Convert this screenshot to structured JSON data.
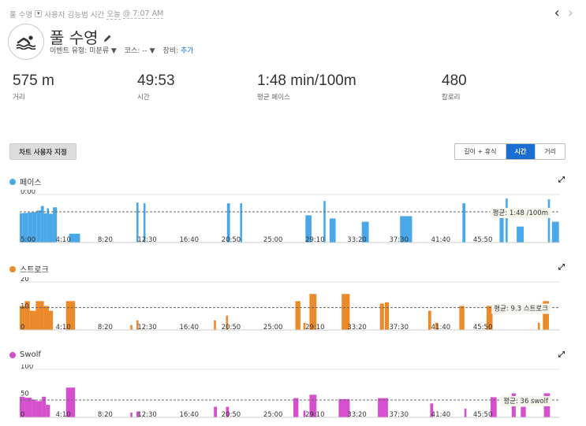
{
  "breadcrumb": {
    "a": "풀 수영",
    "b": "사용자 김능범 시간",
    "c": "오늘",
    "d": "@ 7:07 AM"
  },
  "title": "풀 수영",
  "meta": {
    "event_label": "이벤트 유형:",
    "event_value": "미분류 ▼",
    "course_label": "코스:",
    "course_value": "-- ▼",
    "gear_label": "장비:",
    "gear_value": "추가"
  },
  "stats": [
    {
      "value": "575 m",
      "label": "거리"
    },
    {
      "value": "49:53",
      "label": "시간"
    },
    {
      "value": "1:48 min/100m",
      "label": "평균 페이스"
    },
    {
      "value": "480",
      "label": "칼로리"
    }
  ],
  "customize_label": "차트 사용자 지정",
  "toggle": [
    "길이 + 휴식",
    "시간",
    "거리"
  ],
  "toggle_active": "시간",
  "colors": {
    "pace": "#4aa8e8",
    "stroke": "#ea8a2a",
    "swolf": "#d54fcf",
    "toggle_active": "#1a6ed0"
  },
  "x_ticks": [
    "4:10",
    "8:20",
    "12:30",
    "16:40",
    "20:50",
    "25:00",
    "29:10",
    "33:20",
    "37:30",
    "41:40",
    "45:50"
  ],
  "charts": [
    {
      "title": "페이스",
      "color": "#4aa8e8",
      "y_ticks": [
        "0:00",
        "5:00"
      ],
      "avg_label": "평균: 1:48 /100m",
      "y_min": 0,
      "y_max": 300,
      "inverted": true,
      "avg": 108,
      "chart_data": {
        "type": "bar",
        "series": [
          [
            0,
            0.3,
            117
          ],
          [
            0.3,
            0.8,
            115
          ],
          [
            0.8,
            1.3,
            112
          ],
          [
            1.3,
            1.7,
            110
          ],
          [
            1.7,
            2.1,
            100
          ],
          [
            2.1,
            2.4,
            72
          ],
          [
            2.4,
            2.7,
            118
          ],
          [
            2.7,
            2.9,
            86
          ],
          [
            2.9,
            3.3,
            120
          ],
          [
            3.3,
            3.7,
            80
          ],
          [
            4.9,
            6.0,
            245
          ],
          [
            11.6,
            11.8,
            50
          ],
          [
            12.3,
            12.5,
            55
          ],
          [
            20.6,
            20.9,
            55
          ],
          [
            21.9,
            22.1,
            55
          ],
          [
            28.4,
            29.0,
            130
          ],
          [
            30.2,
            30.4,
            40
          ],
          [
            30.8,
            31.4,
            150
          ],
          [
            34.0,
            34.7,
            170
          ],
          [
            37.8,
            39.0,
            135
          ],
          [
            44.0,
            44.3,
            55
          ],
          [
            47.7,
            48.1,
            115
          ],
          [
            48.3,
            48.5,
            25
          ],
          [
            49.4,
            50.1,
            200
          ],
          [
            52.5,
            52.7,
            30
          ],
          [
            52.9,
            53.6,
            170
          ]
        ]
      }
    },
    {
      "title": "스트로크",
      "color": "#ea8a2a",
      "y_ticks": [
        "20",
        "10",
        "0"
      ],
      "avg_label": "평균: 9.3 스트로크",
      "y_min": 0,
      "y_max": 20,
      "inverted": false,
      "avg": 9.3,
      "chart_data": {
        "type": "bar",
        "series": [
          [
            0,
            0.5,
            10
          ],
          [
            0.5,
            1.0,
            12
          ],
          [
            1.0,
            1.6,
            8
          ],
          [
            1.6,
            2.4,
            12
          ],
          [
            2.4,
            2.9,
            10
          ],
          [
            2.9,
            3.3,
            8
          ],
          [
            4.6,
            5.5,
            12
          ],
          [
            11.0,
            11.2,
            2
          ],
          [
            11.6,
            11.8,
            4
          ],
          [
            19.3,
            19.5,
            4
          ],
          [
            20.5,
            20.7,
            6
          ],
          [
            27.4,
            27.9,
            12
          ],
          [
            28.2,
            28.4,
            3
          ],
          [
            28.8,
            29.5,
            15
          ],
          [
            32.0,
            32.8,
            15
          ],
          [
            35.8,
            36.2,
            11
          ],
          [
            36.3,
            36.7,
            11.5
          ],
          [
            40.6,
            40.9,
            8
          ],
          [
            41.3,
            41.6,
            3
          ],
          [
            43.7,
            44.2,
            10
          ],
          [
            46.4,
            47.0,
            10
          ],
          [
            51.5,
            51.7,
            3
          ],
          [
            52.0,
            52.6,
            12
          ]
        ]
      }
    },
    {
      "title": "Swolf",
      "color": "#d54fcf",
      "y_ticks": [
        "100",
        "50",
        "0"
      ],
      "avg_label": "평균: 36 swolf",
      "y_min": 0,
      "y_max": 100,
      "inverted": false,
      "avg": 36,
      "chart_data": {
        "type": "bar",
        "series": [
          [
            0,
            0.5,
            43
          ],
          [
            0.5,
            1.2,
            41
          ],
          [
            1.2,
            1.6,
            37
          ],
          [
            1.6,
            2.2,
            34
          ],
          [
            2.2,
            2.6,
            43
          ],
          [
            2.6,
            3.0,
            26
          ],
          [
            4.6,
            5.5,
            62
          ],
          [
            11.0,
            11.2,
            10
          ],
          [
            11.6,
            11.9,
            12
          ],
          [
            19.3,
            19.6,
            22
          ],
          [
            20.5,
            20.8,
            22
          ],
          [
            27.2,
            27.7,
            40
          ],
          [
            28.2,
            28.4,
            14
          ],
          [
            28.8,
            29.5,
            47
          ],
          [
            31.7,
            32.8,
            38
          ],
          [
            35.6,
            36.6,
            40
          ],
          [
            40.8,
            41.1,
            29
          ],
          [
            44.2,
            44.4,
            18
          ],
          [
            46.8,
            47.4,
            42
          ],
          [
            48.9,
            49.3,
            50
          ],
          [
            49.8,
            50.3,
            22
          ],
          [
            52.1,
            52.7,
            50
          ]
        ]
      }
    }
  ]
}
